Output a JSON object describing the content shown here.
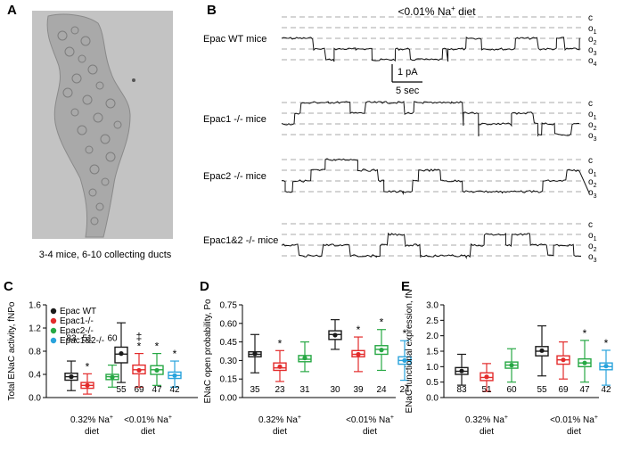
{
  "panels": {
    "a": {
      "letter": "A",
      "caption": "3-4 mice, 6-10 collecting ducts"
    },
    "b": {
      "letter": "B",
      "title_pre": "<0.01% Na",
      "title_sup": "+",
      "title_post": " diet",
      "scale_current": "1 pA",
      "scale_time": "5 sec",
      "traces": [
        {
          "label": "Epac WT mice",
          "levels": [
            "c",
            "o1",
            "o2",
            "o3",
            "o4"
          ]
        },
        {
          "label": "Epac1 -/- mice",
          "levels": [
            "c",
            "o1",
            "o2",
            "o3"
          ]
        },
        {
          "label": "Epac2 -/- mice",
          "levels": [
            "c",
            "o1",
            "o2",
            "o3"
          ]
        },
        {
          "label": "Epac1&2 -/- mice",
          "levels": [
            "c",
            "o1",
            "o2",
            "o3"
          ]
        }
      ]
    }
  },
  "colors": {
    "wt": "#1a1a1a",
    "epac1": "#e32b2b",
    "epac2": "#27a844",
    "epac12": "#29a3dc"
  },
  "legend": [
    "Epac WT",
    "Epac1-/-",
    "Epac2-/-",
    "Epac1&2-/-"
  ],
  "chart_data": [
    {
      "panel": "C",
      "type": "box",
      "ylabel": "Total ENaC activity, fNPo",
      "ylim": [
        0,
        1.6
      ],
      "yticks": [
        "0.0",
        "0.4",
        "0.8",
        "1.2",
        "1.6"
      ],
      "categories": [
        "0.32% Na+ diet",
        "<0.01% Na+ diet"
      ],
      "series": [
        {
          "name": "Epac WT",
          "n": [
            83,
            55
          ],
          "whisker_low": [
            0.12,
            0.26
          ],
          "q1": [
            0.3,
            0.6
          ],
          "median": [
            0.36,
            0.75
          ],
          "q3": [
            0.42,
            0.87
          ],
          "whisker_high": [
            0.63,
            1.29
          ],
          "mean": [
            0.36,
            0.76
          ],
          "sig": [
            "",
            ""
          ]
        },
        {
          "name": "Epac1-/-",
          "n": [
            51,
            69
          ],
          "whisker_low": [
            0.06,
            0.18
          ],
          "q1": [
            0.16,
            0.41
          ],
          "median": [
            0.21,
            0.48
          ],
          "q3": [
            0.26,
            0.56
          ],
          "whisker_high": [
            0.41,
            0.76
          ],
          "mean": [
            0.21,
            0.47
          ],
          "sig": [
            "*",
            "‡ *"
          ]
        },
        {
          "name": "Epac2-/-",
          "n": [
            60,
            47
          ],
          "whisker_low": [
            0.18,
            0.21
          ],
          "q1": [
            0.31,
            0.4
          ],
          "median": [
            0.36,
            0.48
          ],
          "q3": [
            0.4,
            0.55
          ],
          "whisker_high": [
            0.56,
            0.76
          ],
          "mean": [
            0.35,
            0.47
          ],
          "sig": [
            "",
            "*"
          ]
        },
        {
          "name": "Epac1&2-/-",
          "n": [
            null,
            42
          ],
          "whisker_low": [
            null,
            0.18
          ],
          "q1": [
            null,
            0.33
          ],
          "median": [
            null,
            0.38
          ],
          "q3": [
            null,
            0.44
          ],
          "whisker_high": [
            null,
            0.63
          ],
          "mean": [
            null,
            0.38
          ],
          "sig": [
            "",
            "*"
          ]
        }
      ]
    },
    {
      "panel": "D",
      "type": "box",
      "ylabel": "ENaC open probability, Po",
      "ylim": [
        0.0,
        0.75
      ],
      "yticks": [
        "0.00",
        "0.15",
        "0.30",
        "0.45",
        "0.60",
        "0.75"
      ],
      "categories": [
        "0.32% Na+ diet",
        "<0.01% Na+ diet"
      ],
      "series": [
        {
          "name": "Epac WT",
          "n": [
            35,
            30
          ],
          "whisker_low": [
            0.2,
            0.39
          ],
          "q1": [
            0.33,
            0.47
          ],
          "median": [
            0.35,
            0.51
          ],
          "q3": [
            0.37,
            0.54
          ],
          "whisker_high": [
            0.51,
            0.63
          ],
          "mean": [
            0.355,
            0.505
          ],
          "sig": [
            "",
            ""
          ]
        },
        {
          "name": "Epac1-/-",
          "n": [
            23,
            39
          ],
          "whisker_low": [
            0.13,
            0.21
          ],
          "q1": [
            0.22,
            0.33
          ],
          "median": [
            0.24,
            0.35
          ],
          "q3": [
            0.28,
            0.38
          ],
          "whisker_high": [
            0.38,
            0.49
          ],
          "mean": [
            0.25,
            0.35
          ],
          "sig": [
            "*",
            "*"
          ]
        },
        {
          "name": "Epac2-/-",
          "n": [
            31,
            24
          ],
          "whisker_low": [
            0.21,
            0.22
          ],
          "q1": [
            0.29,
            0.35
          ],
          "median": [
            0.31,
            0.39
          ],
          "q3": [
            0.34,
            0.42
          ],
          "whisker_high": [
            0.45,
            0.55
          ],
          "mean": [
            0.32,
            0.385
          ],
          "sig": [
            "",
            "*"
          ]
        },
        {
          "name": "Epac1&2-/-",
          "n": [
            null,
            24
          ],
          "whisker_low": [
            null,
            0.14
          ],
          "q1": [
            null,
            0.27
          ],
          "median": [
            null,
            0.3
          ],
          "q3": [
            null,
            0.33
          ],
          "whisker_high": [
            null,
            0.46
          ],
          "mean": [
            null,
            0.3
          ],
          "sig": [
            "",
            "*"
          ]
        }
      ]
    },
    {
      "panel": "E",
      "type": "box",
      "ylabel": "ENaC functional expression, fN",
      "ylim": [
        0.0,
        3.0
      ],
      "yticks": [
        "0.0",
        "0.5",
        "1.0",
        "1.5",
        "2.0",
        "2.5",
        "3.0"
      ],
      "categories": [
        "0.32% Na+ diet",
        "<0.01% Na+ diet"
      ],
      "series": [
        {
          "name": "Epac WT",
          "n": [
            83,
            55
          ],
          "whisker_low": [
            0.4,
            0.7
          ],
          "q1": [
            0.75,
            1.35
          ],
          "median": [
            0.85,
            1.5
          ],
          "q3": [
            0.97,
            1.65
          ],
          "whisker_high": [
            1.4,
            2.32
          ],
          "mean": [
            0.86,
            1.52
          ],
          "sig": [
            "",
            ""
          ]
        },
        {
          "name": "Epac1-/-",
          "n": [
            51,
            69
          ],
          "whisker_low": [
            0.2,
            0.6
          ],
          "q1": [
            0.55,
            1.08
          ],
          "median": [
            0.65,
            1.22
          ],
          "q3": [
            0.8,
            1.35
          ],
          "whisker_high": [
            1.1,
            1.8
          ],
          "mean": [
            0.67,
            1.22
          ],
          "sig": [
            "",
            ""
          ]
        },
        {
          "name": "Epac2-/-",
          "n": [
            60,
            47
          ],
          "whisker_low": [
            0.5,
            0.5
          ],
          "q1": [
            0.95,
            1.0
          ],
          "median": [
            1.05,
            1.12
          ],
          "q3": [
            1.15,
            1.25
          ],
          "whisker_high": [
            1.58,
            1.85
          ],
          "mean": [
            1.05,
            1.12
          ],
          "sig": [
            "",
            "*"
          ]
        },
        {
          "name": "Epac1&2-/-",
          "n": [
            null,
            42
          ],
          "whisker_low": [
            null,
            0.4
          ],
          "q1": [
            null,
            0.9
          ],
          "median": [
            null,
            1.0
          ],
          "q3": [
            null,
            1.12
          ],
          "whisker_high": [
            null,
            1.53
          ],
          "mean": [
            null,
            1.02
          ],
          "sig": [
            "",
            "*"
          ]
        }
      ]
    }
  ]
}
